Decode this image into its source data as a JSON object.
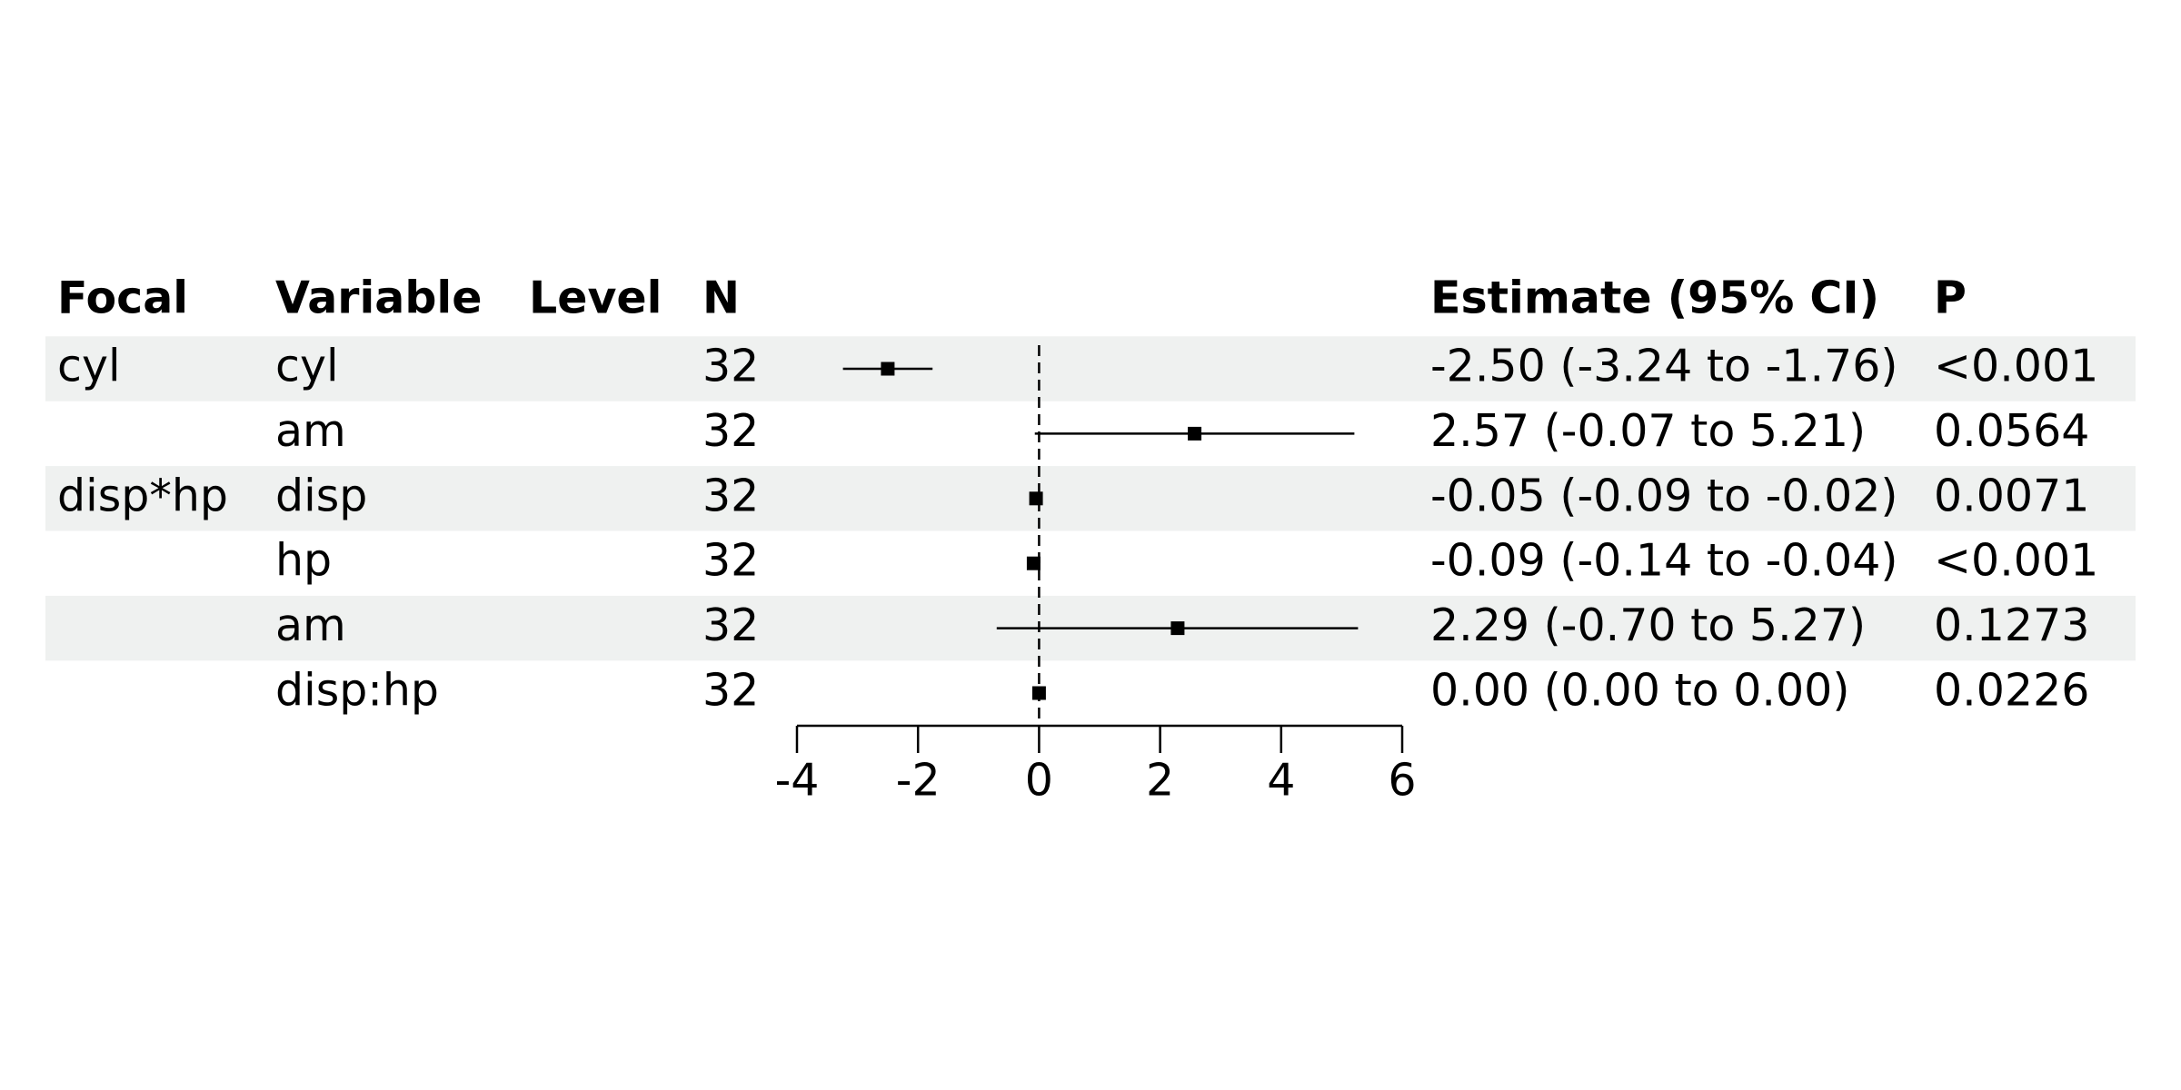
{
  "chart_data": {
    "type": "forest",
    "columns": [
      "Focal",
      "Variable",
      "Level",
      "N",
      "Estimate (95% CI)",
      "P"
    ],
    "focal": [
      "cyl",
      null,
      "disp*hp",
      null,
      null,
      null
    ],
    "variables": [
      "cyl",
      "am",
      "disp",
      "hp",
      "am",
      "disp:hp"
    ],
    "n": [
      32,
      32,
      32,
      32,
      32,
      32
    ],
    "values": [
      -2.5,
      2.57,
      -0.05,
      -0.09,
      2.29,
      0.0
    ],
    "lower": [
      -3.24,
      -0.07,
      -0.09,
      -0.14,
      -0.7,
      0.0
    ],
    "upper": [
      -1.76,
      5.21,
      -0.02,
      -0.04,
      5.27,
      0.0
    ],
    "value_labels": [
      "-2.50 (-3.24 to -1.76)",
      "2.57 (-0.07 to 5.21)",
      "-0.05 (-0.09 to -0.02)",
      "-0.09 (-0.14 to -0.04)",
      "2.29 (-0.70 to 5.27)",
      "0.00 (0.00 to 0.00)"
    ],
    "p_values": [
      "<0.001",
      "0.0564",
      "0.0071",
      "<0.001",
      "0.1273",
      "0.0226"
    ],
    "xlim": [
      -4,
      6
    ],
    "xticks": [
      -4,
      -2,
      0,
      2,
      4,
      6
    ],
    "reference_line": 0,
    "color": "#000000",
    "stripe_color": "#eff1f0"
  }
}
